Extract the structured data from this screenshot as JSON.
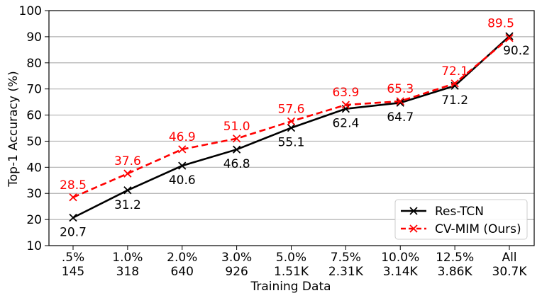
{
  "chart_data": {
    "type": "line",
    "xlabel": "Training Data",
    "ylabel": "Top-1 Accuracy (%)",
    "ylim": [
      10,
      100
    ],
    "yticks": [
      10,
      20,
      30,
      40,
      50,
      60,
      70,
      80,
      90,
      100
    ],
    "grid": "horizontal",
    "legend_position": "bottom-right",
    "categories": [
      [
        ".5%",
        "145"
      ],
      [
        "1.0%",
        "318"
      ],
      [
        "2.0%",
        "640"
      ],
      [
        "3.0%",
        "926"
      ],
      [
        "5.0%",
        "1.51K"
      ],
      [
        "7.5%",
        "2.31K"
      ],
      [
        "10.0%",
        "3.14K"
      ],
      [
        "12.5%",
        "3.86K"
      ],
      [
        "All",
        "30.7K"
      ]
    ],
    "series": [
      {
        "name": "Res-TCN",
        "color": "#000000",
        "line_style": "solid",
        "marker": "x",
        "label_position": "below",
        "values": [
          20.7,
          31.2,
          40.6,
          46.8,
          55.1,
          62.4,
          64.7,
          71.2,
          90.2
        ],
        "labels": [
          "20.7",
          "31.2",
          "40.6",
          "46.8",
          "55.1",
          "62.4",
          "64.7",
          "71.2",
          "90.2"
        ]
      },
      {
        "name": "CV-MIM (Ours)",
        "color": "#ff0000",
        "line_style": "dashed",
        "marker": "x",
        "label_position": "above",
        "values": [
          28.5,
          37.6,
          46.9,
          51.0,
          57.6,
          63.9,
          65.3,
          72.1,
          89.5
        ],
        "labels": [
          "28.5",
          "37.6",
          "46.9",
          "51.0",
          "57.6",
          "63.9",
          "65.3",
          "72.1",
          "89.5"
        ]
      }
    ]
  }
}
